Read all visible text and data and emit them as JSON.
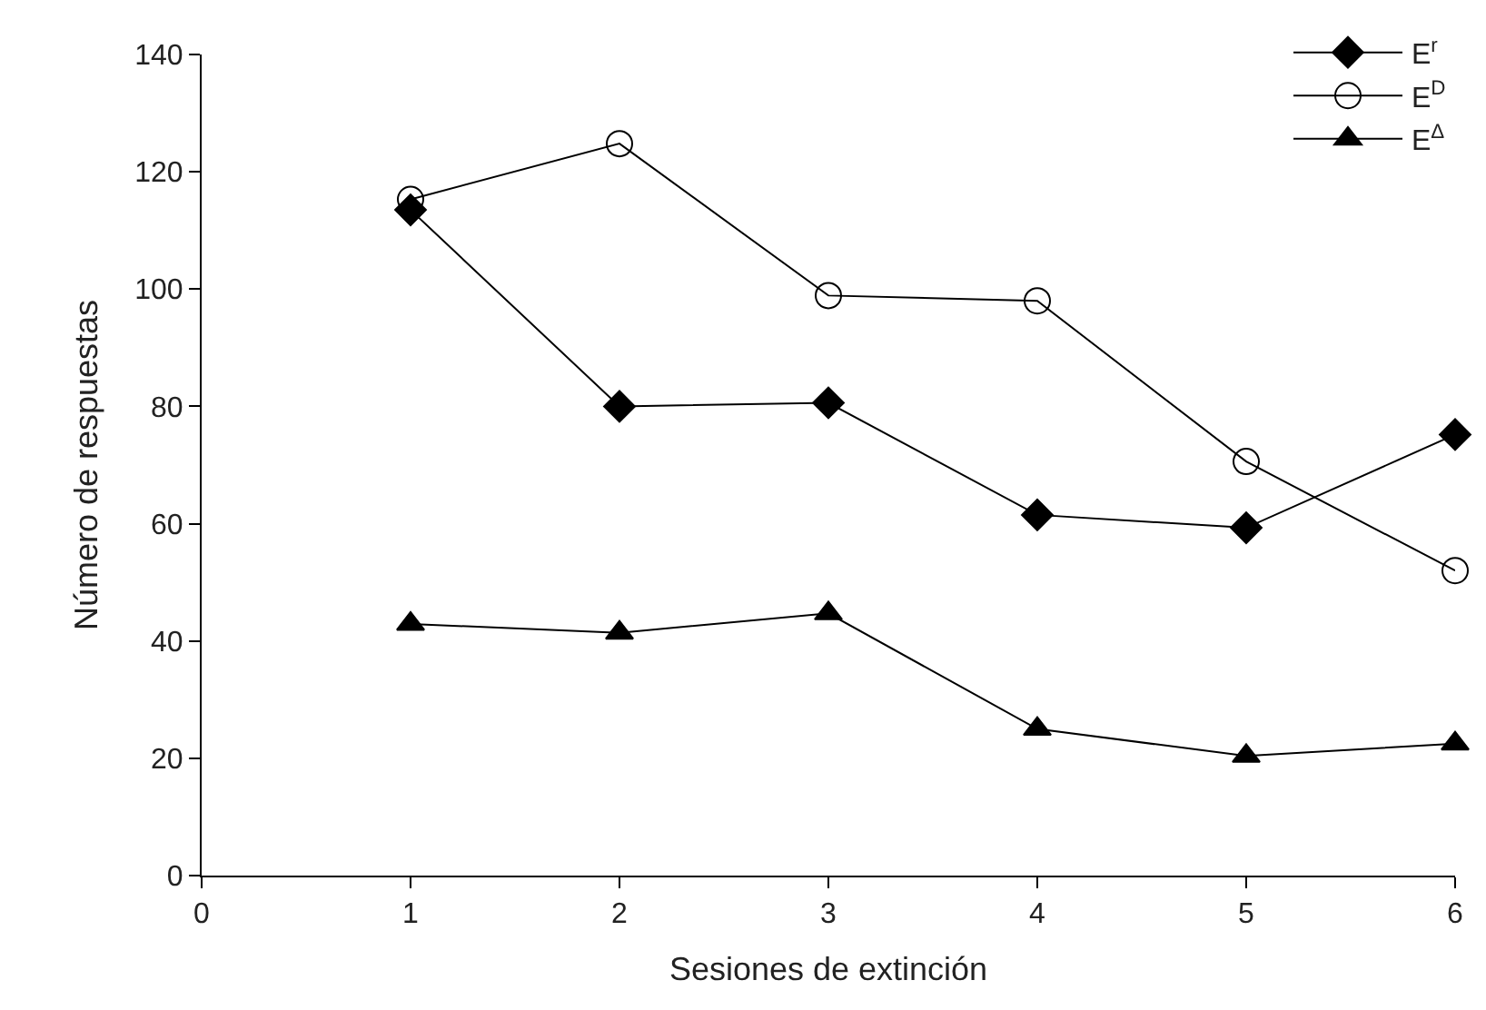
{
  "chart_data": {
    "type": "line",
    "xlabel": "Sesiones de extinción",
    "ylabel": "Número de respuestas",
    "x": [
      1,
      2,
      3,
      4,
      5,
      6
    ],
    "series": [
      {
        "name": "E$^{r}$",
        "color": "#000000",
        "marker": "diamond",
        "values": [
          113.5,
          80,
          80.6,
          61.5,
          59.3,
          75.2
        ]
      },
      {
        "name": "E$^{D}$",
        "color": "#000000",
        "marker": "circle",
        "values": [
          115.3,
          124.8,
          98.9,
          98,
          70.6,
          52
        ]
      },
      {
        "name": "E$^{Δ}$",
        "color": "#000000",
        "marker": "triangle",
        "values": [
          42.9,
          41.4,
          44.7,
          25,
          20.4,
          22.5
        ]
      }
    ],
    "xlim": [
      0,
      6
    ],
    "xticks": [
      0,
      1,
      2,
      3,
      4,
      5,
      6
    ],
    "ylim": [
      0,
      140
    ],
    "yticks": [
      0,
      20,
      40,
      60,
      80,
      100,
      120,
      140
    ],
    "legend": "top right",
    "line_style": "solid"
  }
}
